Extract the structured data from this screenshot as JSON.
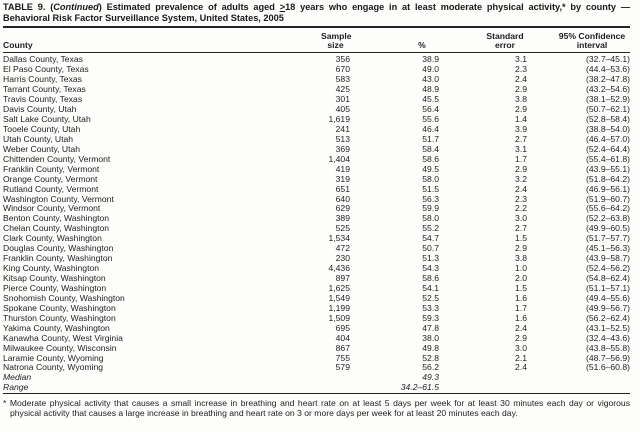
{
  "title": {
    "part1": "TABLE 9. (",
    "continued": "Continued",
    "part2": ") Estimated prevalence of adults aged ",
    "geq": ">",
    "part3": "18 years who engage in at least moderate physical activity,* by county — Behavioral Risk Factor Surveillance System, United States, 2005"
  },
  "table": {
    "columns": {
      "county": "County",
      "sample_line1": "Sample",
      "sample_line2": "size",
      "percent": "%",
      "se_line1": "Standard",
      "se_line2": "error",
      "ci_line1": "95% Confidence",
      "ci_line2": "interval"
    },
    "rows": [
      {
        "county": "Dallas County, Texas",
        "sample": "356",
        "pct": "38.9",
        "se": "3.1",
        "ci": "(32.7–45.1)"
      },
      {
        "county": "El Paso County, Texas",
        "sample": "670",
        "pct": "49.0",
        "se": "2.3",
        "ci": "(44.4–53.6)"
      },
      {
        "county": "Harris County, Texas",
        "sample": "583",
        "pct": "43.0",
        "se": "2.4",
        "ci": "(38.2–47.8)"
      },
      {
        "county": "Tarrant County, Texas",
        "sample": "425",
        "pct": "48.9",
        "se": "2.9",
        "ci": "(43.2–54.6)"
      },
      {
        "county": "Travis County, Texas",
        "sample": "301",
        "pct": "45.5",
        "se": "3.8",
        "ci": "(38.1–52.9)"
      },
      {
        "county": "Davis County, Utah",
        "sample": "405",
        "pct": "56.4",
        "se": "2.9",
        "ci": "(50.7–62.1)"
      },
      {
        "county": "Salt Lake County, Utah",
        "sample": "1,619",
        "pct": "55.6",
        "se": "1.4",
        "ci": "(52.8–58.4)"
      },
      {
        "county": "Tooele County, Utah",
        "sample": "241",
        "pct": "46.4",
        "se": "3.9",
        "ci": "(38.8–54.0)"
      },
      {
        "county": "Utah County, Utah",
        "sample": "513",
        "pct": "51.7",
        "se": "2.7",
        "ci": "(46.4–57.0)"
      },
      {
        "county": "Weber County, Utah",
        "sample": "369",
        "pct": "58.4",
        "se": "3.1",
        "ci": "(52.4–64.4)"
      },
      {
        "county": "Chittenden County, Vermont",
        "sample": "1,404",
        "pct": "58.6",
        "se": "1.7",
        "ci": "(55.4–61.8)"
      },
      {
        "county": "Franklin County, Vermont",
        "sample": "419",
        "pct": "49.5",
        "se": "2.9",
        "ci": "(43.9–55.1)"
      },
      {
        "county": "Orange County, Vermont",
        "sample": "319",
        "pct": "58.0",
        "se": "3.2",
        "ci": "(51.8–64.2)"
      },
      {
        "county": "Rutland County, Vermont",
        "sample": "651",
        "pct": "51.5",
        "se": "2.4",
        "ci": "(46.9–56.1)"
      },
      {
        "county": "Washington County, Vermont",
        "sample": "640",
        "pct": "56.3",
        "se": "2.3",
        "ci": "(51.9–60.7)"
      },
      {
        "county": "Windsor County, Vermont",
        "sample": "629",
        "pct": "59.9",
        "se": "2.2",
        "ci": "(55.6–64.2)"
      },
      {
        "county": "Benton County, Washington",
        "sample": "389",
        "pct": "58.0",
        "se": "3.0",
        "ci": "(52.2–63.8)"
      },
      {
        "county": "Chelan County, Washington",
        "sample": "525",
        "pct": "55.2",
        "se": "2.7",
        "ci": "(49.9–60.5)"
      },
      {
        "county": "Clark County, Washington",
        "sample": "1,534",
        "pct": "54.7",
        "se": "1.5",
        "ci": "(51.7–57.7)"
      },
      {
        "county": "Douglas County, Washington",
        "sample": "472",
        "pct": "50.7",
        "se": "2.9",
        "ci": "(45.1–56.3)"
      },
      {
        "county": "Franklin County, Washington",
        "sample": "230",
        "pct": "51.3",
        "se": "3.8",
        "ci": "(43.9–58.7)"
      },
      {
        "county": "King County, Washington",
        "sample": "4,436",
        "pct": "54.3",
        "se": "1.0",
        "ci": "(52.4–56.2)"
      },
      {
        "county": "Kitsap County, Washington",
        "sample": "897",
        "pct": "58.6",
        "se": "2.0",
        "ci": "(54.8–62.4)"
      },
      {
        "county": "Pierce County, Washington",
        "sample": "1,625",
        "pct": "54.1",
        "se": "1.5",
        "ci": "(51.1–57.1)"
      },
      {
        "county": "Snohomish County, Washington",
        "sample": "1,549",
        "pct": "52.5",
        "se": "1.6",
        "ci": "(49.4–55.6)"
      },
      {
        "county": "Spokane County, Washington",
        "sample": "1,199",
        "pct": "53.3",
        "se": "1.7",
        "ci": "(49.9–56.7)"
      },
      {
        "county": "Thurston County, Washington",
        "sample": "1,509",
        "pct": "59.3",
        "se": "1.6",
        "ci": "(56.2–62.4)"
      },
      {
        "county": "Yakima County, Washington",
        "sample": "695",
        "pct": "47.8",
        "se": "2.4",
        "ci": "(43.1–52.5)"
      },
      {
        "county": "Kanawha County, West Virginia",
        "sample": "404",
        "pct": "38.0",
        "se": "2.9",
        "ci": "(32.4–43.6)"
      },
      {
        "county": "Milwaukee County, Wisconsin",
        "sample": "867",
        "pct": "49.8",
        "se": "3.0",
        "ci": "(43.8–55.8)"
      },
      {
        "county": "Laramie County, Wyoming",
        "sample": "755",
        "pct": "52.8",
        "se": "2.1",
        "ci": "(48.7–56.9)"
      },
      {
        "county": "Natrona County, Wyoming",
        "sample": "579",
        "pct": "56.2",
        "se": "2.4",
        "ci": "(51.6–60.8)"
      }
    ],
    "summary": [
      {
        "label": "Median",
        "pct": "49.3"
      },
      {
        "label": "Range",
        "pct": "34.2–61.5"
      }
    ]
  },
  "footnote": {
    "marker": "*",
    "text": "Moderate physical activity that causes a small increase in breathing and heart rate on at least 5 days per week for at least 30 minutes each day or vigorous physical activity that causes a large increase in breathing and heart rate on 3 or more days per week for at least 20 minutes each day."
  }
}
